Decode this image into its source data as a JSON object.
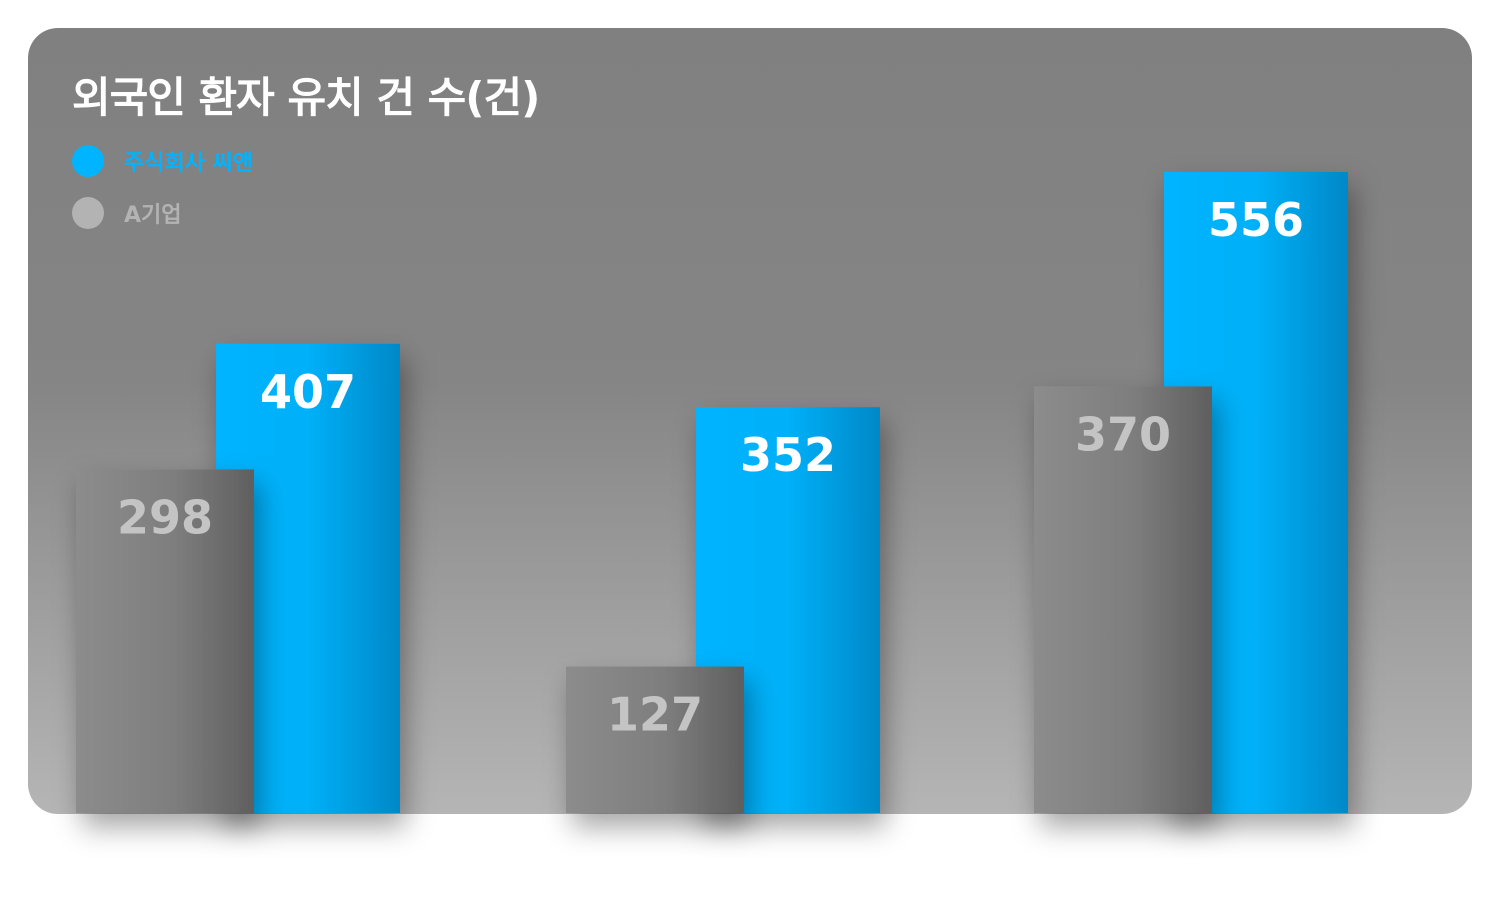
{
  "chart_data": {
    "type": "bar",
    "title": "외국인 환자 유치 건 수(건)",
    "categories": [
      "",
      "",
      ""
    ],
    "series": [
      {
        "name": "A기업",
        "color": "#8a8a8a",
        "label_color": "#c4c4c4",
        "values": [
          298,
          127,
          370
        ]
      },
      {
        "name": "주식회사 씨앤",
        "color": "#00b4ff",
        "label_color": "#ffffff",
        "values": [
          407,
          352,
          556
        ]
      }
    ],
    "ylim": [
      0,
      556
    ],
    "grid": false,
    "legend": "top-left",
    "xlabel": "",
    "ylabel": ""
  },
  "legend": {
    "items": [
      {
        "label": "주식회사 씨앤",
        "color": "#00b4ff"
      },
      {
        "label": "A기업",
        "color": "#b3b3b3"
      }
    ]
  }
}
